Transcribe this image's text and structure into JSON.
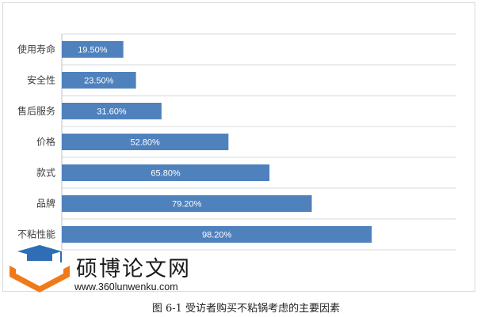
{
  "chart_data": {
    "type": "bar",
    "orientation": "horizontal",
    "categories": [
      "使用寿命",
      "安全性",
      "售后服务",
      "价格",
      "款式",
      "品牌",
      "不粘性能"
    ],
    "values": [
      19.5,
      23.5,
      31.6,
      52.8,
      65.8,
      79.2,
      98.2
    ],
    "data_labels": [
      "19.50%",
      "23.50%",
      "31.60%",
      "52.80%",
      "65.80%",
      "79.20%",
      "98.20%"
    ],
    "xlim": [
      0,
      125
    ],
    "grid": true,
    "bar_color": "#4f81bd",
    "label_color": "#ffffff"
  },
  "caption": "图 6-1 受访者购买不粘锅考虑的主要因素",
  "watermark": {
    "name": "硕博论文网",
    "url": "www.360lunwenku.com",
    "logo_color_cap": "#2f6eb5",
    "logo_color_book": "#f07a1a"
  }
}
